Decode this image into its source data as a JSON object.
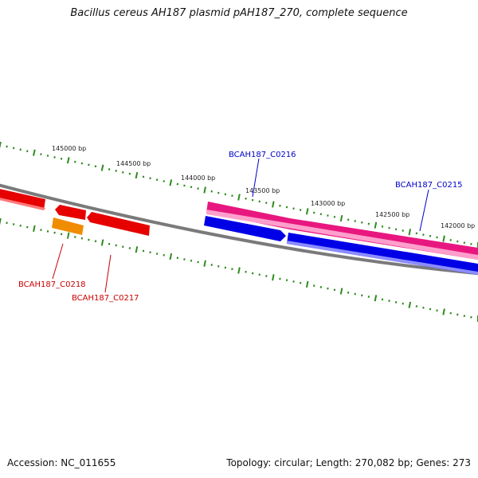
{
  "title": "Bacillus cereus AH187 plasmid pAH187_270, complete sequence",
  "footer": {
    "accession": "Accession: NC_011655",
    "summary": "Topology: circular; Length: 270,082 bp; Genes: 273"
  },
  "colors": {
    "backbone": "#7a7a7a",
    "tick": "#2e8b1e",
    "forward_strand_gene": "#e8177f",
    "reverse_strand_gene": "#0000e6",
    "red_gene": "#e60000",
    "orange_gene": "#f08c00",
    "label_blue": "#0000cc",
    "label_red": "#cc0000"
  },
  "scale_labels": [
    {
      "text": "145000 bp"
    },
    {
      "text": "144500 bp"
    },
    {
      "text": "144000 bp"
    },
    {
      "text": "143500 bp"
    },
    {
      "text": "143000 bp"
    },
    {
      "text": "142500 bp"
    },
    {
      "text": "142000 bp"
    }
  ],
  "gene_labels": [
    {
      "text": "BCAH187_C0216"
    },
    {
      "text": "BCAH187_C0215"
    },
    {
      "text": "BCAH187_C0218"
    },
    {
      "text": "BCAH187_C0217"
    }
  ]
}
